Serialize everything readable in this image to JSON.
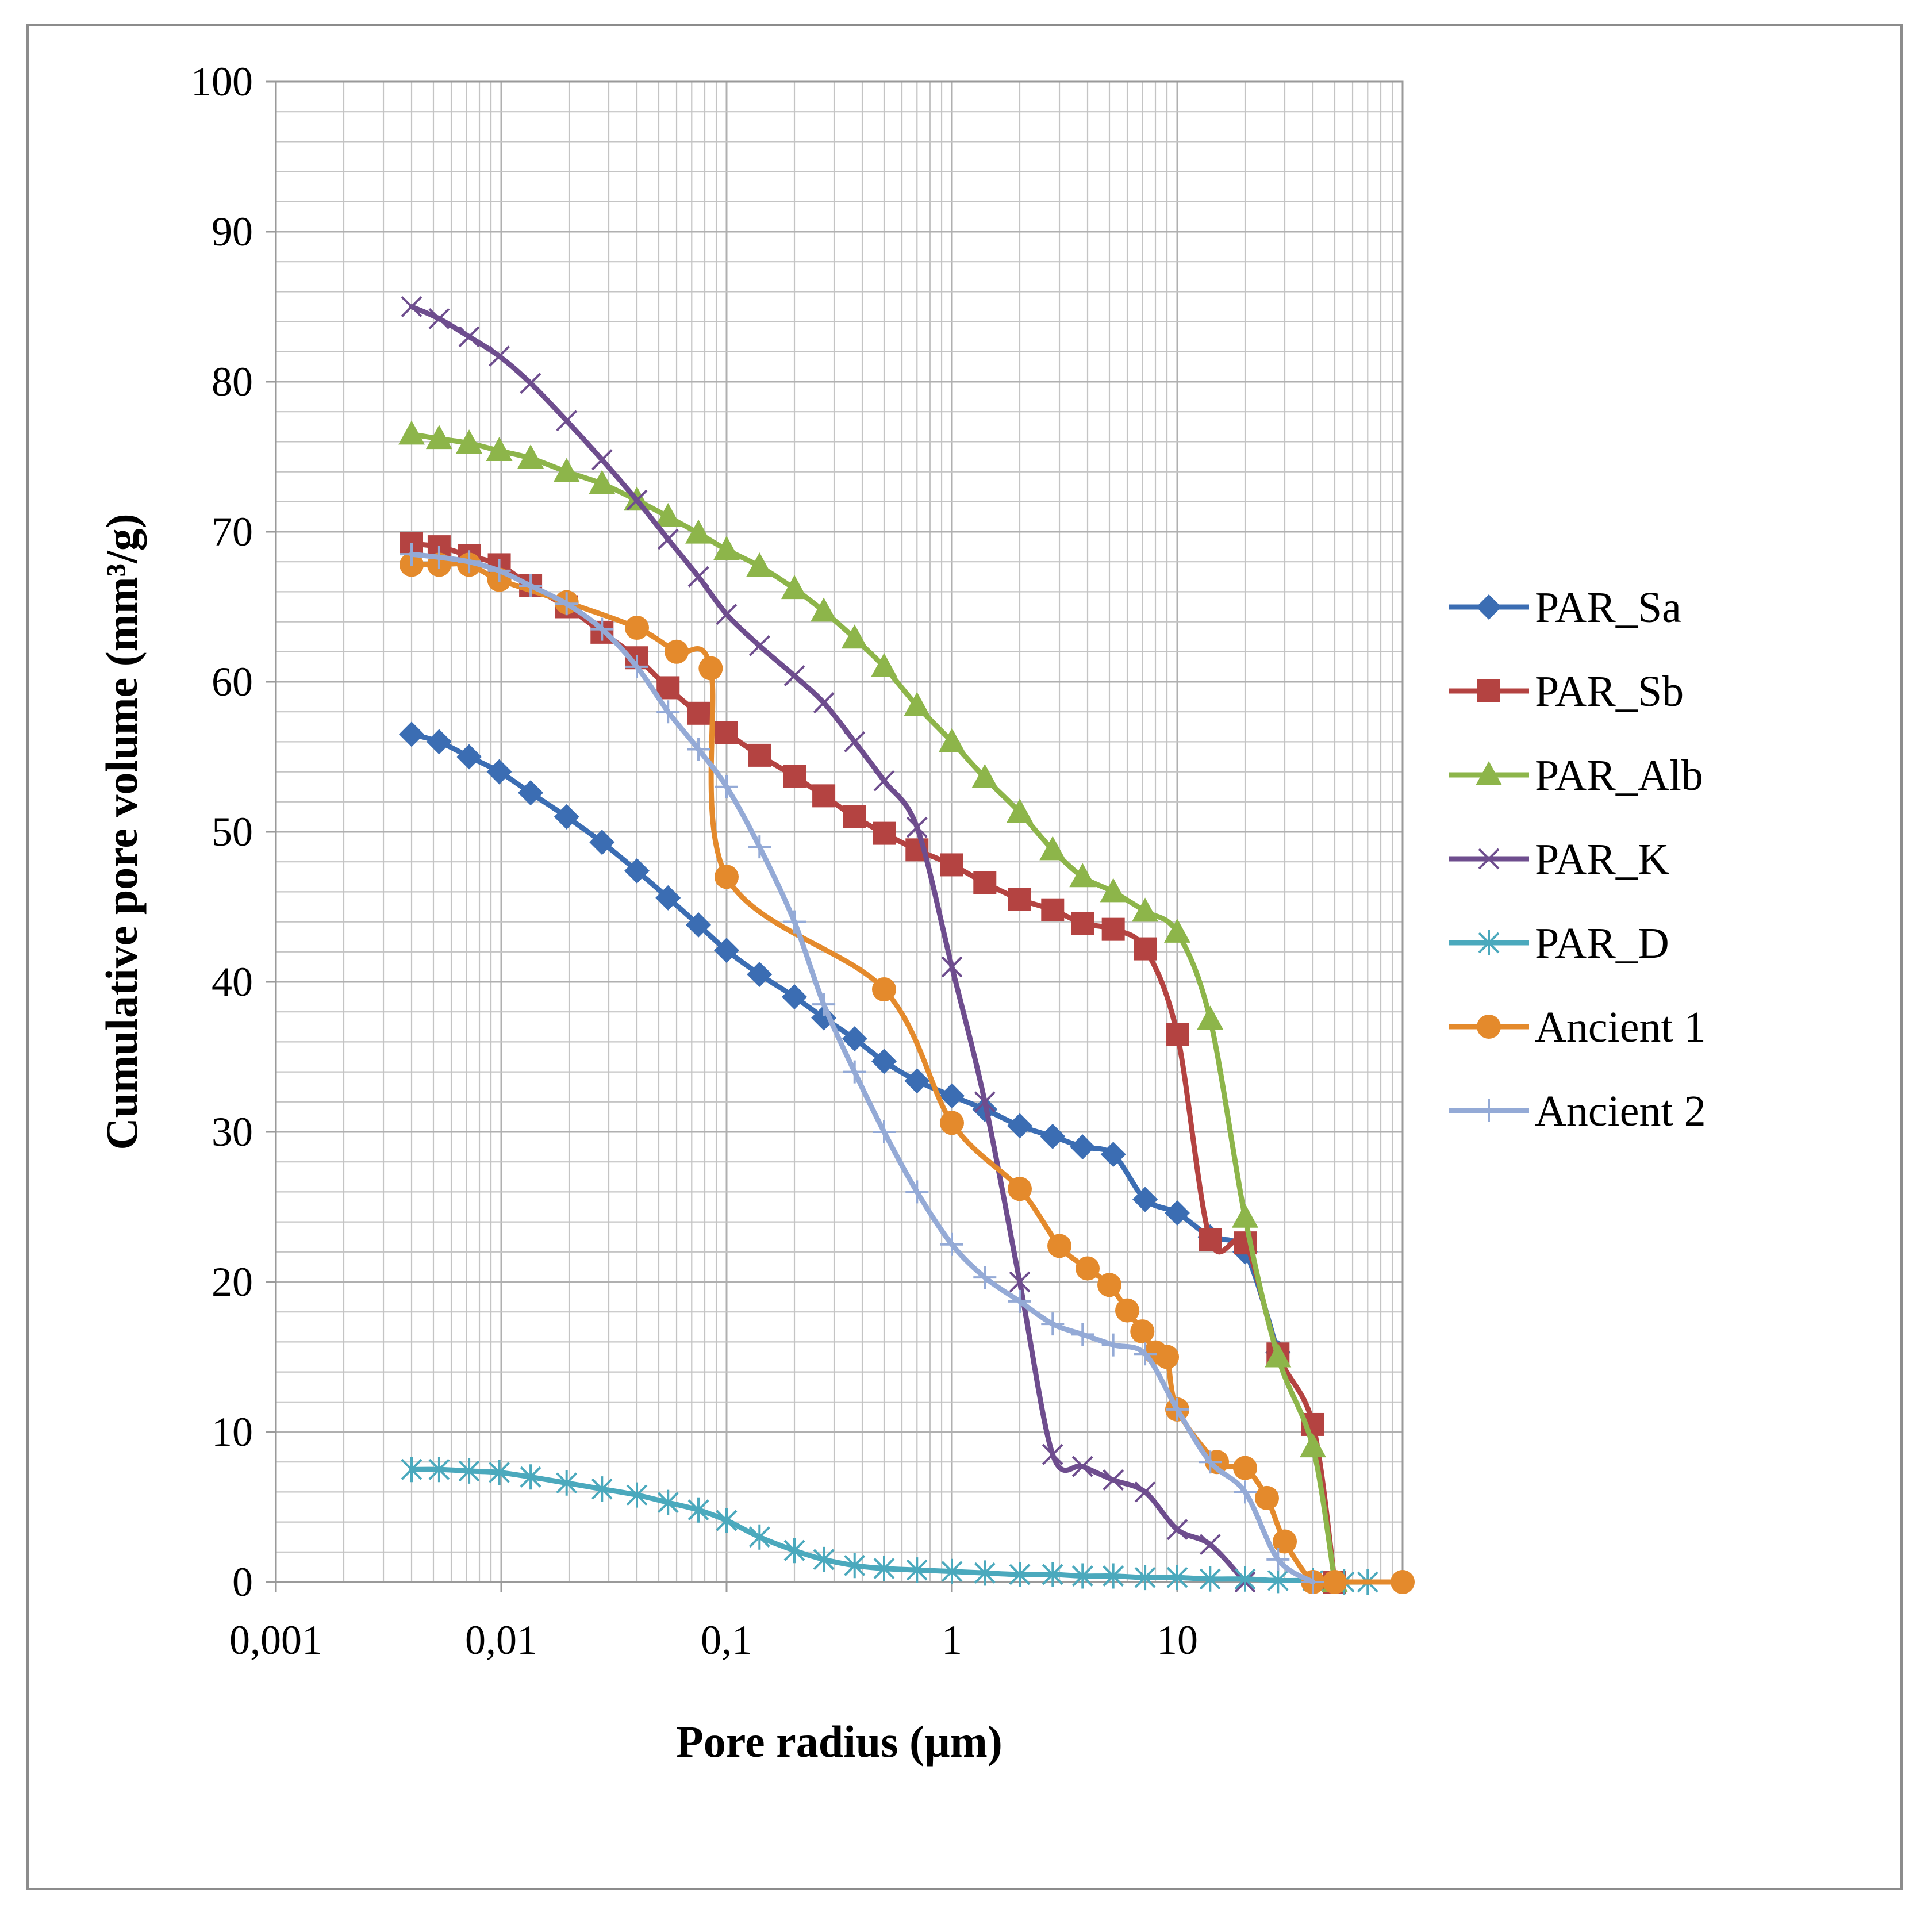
{
  "chart_data": {
    "type": "scatter-line",
    "xscale": "log",
    "xlabel": "Pore radius (µm)",
    "ylabel": "Cumulative pore volume (mm³/g)",
    "xlim": [
      0.001,
      100
    ],
    "ylim": [
      0,
      100
    ],
    "x_tick_labels": [
      "0,001",
      "0,01",
      "0,1",
      "1",
      "10"
    ],
    "y_ticks": [
      0,
      10,
      20,
      30,
      40,
      50,
      60,
      70,
      80,
      90,
      100
    ],
    "grid": true,
    "legend_position": "right",
    "series": [
      {
        "name": "PAR_Sa",
        "color": "#3b6db3",
        "marker": "diamond",
        "x": [
          0.004,
          0.0053,
          0.0072,
          0.0098,
          0.0135,
          0.0195,
          0.028,
          0.04,
          0.055,
          0.075,
          0.1,
          0.14,
          0.2,
          0.27,
          0.37,
          0.5,
          0.7,
          1.0,
          1.4,
          2.0,
          2.8,
          3.8,
          5.2,
          7.2,
          10.0,
          14.0,
          20.0,
          28.0
        ],
        "y": [
          56.5,
          56.0,
          55.0,
          54.0,
          52.6,
          51.0,
          49.3,
          47.4,
          45.6,
          43.8,
          42.1,
          40.5,
          39.0,
          37.6,
          36.2,
          34.7,
          33.4,
          32.4,
          31.5,
          30.4,
          29.7,
          29.0,
          28.5,
          25.5,
          24.6,
          23.0,
          22.0,
          15.3
        ]
      },
      {
        "name": "PAR_Sb",
        "color": "#b44341",
        "marker": "square",
        "x": [
          0.004,
          0.0053,
          0.0072,
          0.0098,
          0.0135,
          0.0195,
          0.028,
          0.04,
          0.055,
          0.075,
          0.1,
          0.14,
          0.2,
          0.27,
          0.37,
          0.5,
          0.7,
          1.0,
          1.4,
          2.0,
          2.8,
          3.8,
          5.2,
          7.2,
          10.0,
          14.0,
          20.0,
          28.0,
          40.0,
          50.0
        ],
        "y": [
          69.2,
          69.0,
          68.4,
          67.8,
          66.4,
          65.0,
          63.3,
          61.6,
          59.6,
          57.9,
          56.6,
          55.1,
          53.7,
          52.4,
          51.0,
          49.9,
          48.8,
          47.8,
          46.6,
          45.5,
          44.8,
          43.9,
          43.5,
          42.2,
          36.5,
          22.8,
          22.6,
          15.2,
          10.5,
          0
        ]
      },
      {
        "name": "PAR_Alb",
        "color": "#8db54a",
        "marker": "triangle",
        "x": [
          0.004,
          0.0053,
          0.0072,
          0.0098,
          0.0135,
          0.0195,
          0.028,
          0.04,
          0.055,
          0.075,
          0.1,
          0.14,
          0.2,
          0.27,
          0.37,
          0.5,
          0.7,
          1.0,
          1.4,
          2.0,
          2.8,
          3.8,
          5.2,
          7.2,
          10.0,
          14.0,
          20.0,
          28.0,
          40.0,
          50.0
        ],
        "y": [
          76.5,
          76.2,
          75.9,
          75.4,
          74.9,
          74.0,
          73.2,
          72.1,
          71.0,
          69.9,
          68.8,
          67.7,
          66.2,
          64.7,
          62.9,
          61.0,
          58.4,
          56.0,
          53.6,
          51.3,
          48.8,
          47.0,
          46.0,
          44.7,
          43.3,
          37.5,
          24.3,
          15.0,
          9.0,
          0
        ]
      },
      {
        "name": "PAR_K",
        "color": "#6e4d8e",
        "marker": "x",
        "x": [
          0.004,
          0.0053,
          0.0072,
          0.0098,
          0.0135,
          0.0195,
          0.028,
          0.04,
          0.055,
          0.075,
          0.1,
          0.14,
          0.2,
          0.27,
          0.37,
          0.5,
          0.7,
          1.0,
          1.4,
          2.0,
          2.8,
          3.8,
          5.2,
          7.2,
          10.0,
          14.0,
          20.0
        ],
        "y": [
          85.0,
          84.2,
          83.0,
          81.7,
          79.9,
          77.4,
          74.8,
          72.1,
          69.5,
          67.0,
          64.5,
          62.4,
          60.4,
          58.6,
          56.0,
          53.4,
          50.3,
          41.0,
          32.0,
          20.0,
          8.5,
          7.7,
          6.8,
          6.0,
          3.5,
          2.5,
          0
        ]
      },
      {
        "name": "PAR_D",
        "color": "#4ba9bd",
        "marker": "star",
        "x": [
          0.004,
          0.0053,
          0.0072,
          0.0098,
          0.0135,
          0.0195,
          0.028,
          0.04,
          0.055,
          0.075,
          0.1,
          0.14,
          0.2,
          0.27,
          0.37,
          0.5,
          0.7,
          1.0,
          1.4,
          2.0,
          2.8,
          3.8,
          5.2,
          7.2,
          10.0,
          14.0,
          20.0,
          28.0,
          40.0,
          55.0,
          70.0
        ],
        "y": [
          7.5,
          7.5,
          7.4,
          7.3,
          7.0,
          6.6,
          6.2,
          5.8,
          5.3,
          4.8,
          4.1,
          3.0,
          2.1,
          1.5,
          1.1,
          0.9,
          0.8,
          0.7,
          0.6,
          0.5,
          0.5,
          0.4,
          0.4,
          0.3,
          0.3,
          0.2,
          0.2,
          0.1,
          0.1,
          0.0,
          0.0
        ]
      },
      {
        "name": "Ancient 1",
        "color": "#e48a2c",
        "marker": "circle",
        "x": [
          0.004,
          0.0053,
          0.0072,
          0.0098,
          0.0195,
          0.04,
          0.06,
          0.085,
          0.1,
          0.5,
          1.0,
          2.0,
          3.0,
          4.0,
          5.0,
          6.0,
          7.0,
          8.0,
          9.0,
          10.0,
          15.0,
          20.0,
          25.0,
          30.0,
          40.0,
          50.0,
          100.0
        ],
        "y": [
          67.8,
          67.8,
          67.8,
          66.8,
          65.3,
          63.6,
          62.0,
          60.9,
          47.0,
          39.5,
          30.6,
          26.2,
          22.4,
          20.9,
          19.8,
          18.1,
          16.7,
          15.3,
          15.0,
          11.5,
          8.0,
          7.6,
          5.6,
          2.7,
          0,
          0,
          0
        ]
      },
      {
        "name": "Ancient 2",
        "color": "#94aad6",
        "marker": "plus",
        "x": [
          0.004,
          0.0053,
          0.0072,
          0.0098,
          0.0135,
          0.0195,
          0.028,
          0.04,
          0.055,
          0.075,
          0.1,
          0.14,
          0.2,
          0.27,
          0.37,
          0.5,
          0.7,
          1.0,
          1.4,
          2.0,
          2.8,
          3.8,
          5.2,
          7.2,
          10.0,
          14.0,
          20.0,
          28.0,
          40.0
        ],
        "y": [
          68.5,
          68.3,
          68.0,
          67.4,
          66.4,
          65.2,
          63.5,
          61.0,
          58.0,
          55.5,
          53.0,
          49.0,
          44.0,
          38.5,
          34.0,
          30.0,
          26.0,
          22.5,
          20.3,
          18.7,
          17.2,
          16.5,
          15.8,
          15.2,
          11.5,
          8.0,
          6.0,
          1.5,
          0
        ]
      }
    ]
  }
}
